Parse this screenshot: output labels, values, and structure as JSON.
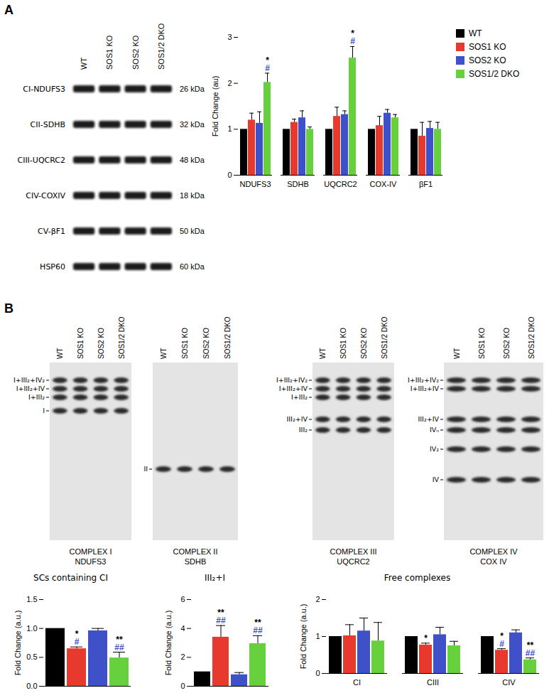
{
  "panel_labels": [
    "A",
    "B"
  ],
  "blot_a": {
    "lanes": [
      "WT",
      "SOS1 KO",
      "SOS2 KO",
      "SOS1/2 DKO"
    ],
    "rows": [
      {
        "label": "CI-NDUFS3",
        "mw": "26 kDa"
      },
      {
        "label": "CII-SDHB",
        "mw": "32 kDa"
      },
      {
        "label": "CIII-UQCRC2",
        "mw": "48 kDa"
      },
      {
        "label": "CIV-COXIV",
        "mw": "18 kDa"
      },
      {
        "label": "CV-βF1",
        "mw": "50 kDa"
      },
      {
        "label": "HSP60",
        "mw": "60 kDa"
      }
    ]
  },
  "blots_b": [
    {
      "lanes": [
        "WT",
        "SOS1 KO",
        "SOS2 KO",
        "SOS1/2 DKO"
      ],
      "bands": [
        "I+III₂+IV₂",
        "I+III₂+IV",
        "I+III₂",
        "I"
      ],
      "caption": [
        "COMPLEX I",
        "NDUFS3"
      ]
    },
    {
      "lanes": [
        "WT",
        "SOS1 KO",
        "SOS2 KO",
        "SOS1/2 DKO"
      ],
      "bands": [
        "II"
      ],
      "caption": [
        "COMPLEX II",
        "SDHB"
      ]
    },
    {
      "lanes": [
        "WT",
        "SOS1 KO",
        "SOS2 KO",
        "SOS1/2 DKO"
      ],
      "bands": [
        "I+III₂+IV₂",
        "I+III₂+IV",
        "I+III₂",
        "III₂+IV",
        "III₂"
      ],
      "caption": [
        "COMPLEX III",
        "UQCRC2"
      ]
    },
    {
      "lanes": [
        "WT",
        "SOS1 KO",
        "SOS2 KO",
        "SOS1/2 DKO"
      ],
      "bands": [
        "I+III₂+IV₂",
        "I+III₂+IV",
        "III₂+IV",
        "IVₙ",
        "IV₂",
        "IV"
      ],
      "caption": [
        "COMPLEX IV",
        "COX IV"
      ]
    }
  ],
  "chart_data": [
    {
      "type": "bar",
      "y_label": "Fold Change (au)",
      "categories": [
        "NDUFS3",
        "SDHB",
        "UQCRC2",
        "COX-IV",
        "βF1"
      ],
      "series": [
        {
          "name": "WT",
          "color": "#000000",
          "values": [
            1,
            1,
            1,
            1,
            1
          ],
          "errors": [
            0,
            0,
            0,
            0,
            0
          ]
        },
        {
          "name": "SOS1 KO",
          "color": "#e8392f",
          "values": [
            1.2,
            1.15,
            1.28,
            1.08,
            0.85
          ],
          "errors": [
            0.15,
            0.07,
            0.2,
            0.2,
            0.3
          ]
        },
        {
          "name": "SOS2 KO",
          "color": "#3f51c8",
          "values": [
            1.13,
            1.25,
            1.32,
            1.35,
            1.02
          ],
          "errors": [
            0.25,
            0.15,
            0.08,
            0.08,
            0.15
          ]
        },
        {
          "name": "SOS1/2 DKO",
          "color": "#66d13c",
          "values": [
            2.02,
            1.0,
            2.55,
            1.25,
            1.0
          ],
          "errors": [
            0.2,
            0.05,
            0.25,
            0.07,
            0.15
          ]
        }
      ],
      "ylim": [
        0,
        3
      ],
      "yticks": [
        0,
        1,
        2,
        3
      ],
      "legend": "right",
      "annotations": [
        {
          "category": "NDUFS3",
          "series": "SOS1/2 DKO",
          "marks": [
            {
              "text": "*",
              "color": "#000000"
            },
            {
              "text": "#",
              "color": "#3f51c8"
            }
          ]
        },
        {
          "category": "UQCRC2",
          "series": "SOS1/2 DKO",
          "marks": [
            {
              "text": "*",
              "color": "#000000"
            },
            {
              "text": "#",
              "color": "#3f51c8"
            }
          ]
        }
      ]
    },
    {
      "type": "bar",
      "title": "SCs containing CI",
      "y_label": "Fold Change (a.u.)",
      "categories": [
        null
      ],
      "series": [
        {
          "name": "WT",
          "color": "#000000",
          "values": [
            1
          ],
          "errors": [
            0
          ]
        },
        {
          "name": "SOS1 KO",
          "color": "#e8392f",
          "values": [
            0.65
          ],
          "errors": [
            0.03
          ]
        },
        {
          "name": "SOS2 KO",
          "color": "#3f51c8",
          "values": [
            0.96
          ],
          "errors": [
            0.04
          ]
        },
        {
          "name": "SOS1/2 DKO",
          "color": "#66d13c",
          "values": [
            0.49
          ],
          "errors": [
            0.1
          ]
        }
      ],
      "ylim": [
        0,
        1.5
      ],
      "yticks": [
        {
          "value": 0,
          "label": "0.0"
        },
        {
          "value": 0.5,
          "label": "0.5"
        },
        {
          "value": 1,
          "label": "1.0"
        },
        {
          "value": 1.5,
          "label": "1.5"
        }
      ],
      "tick_labels": "y",
      "annotations": [
        {
          "category": null,
          "series": "SOS1 KO",
          "marks": [
            {
              "text": "*",
              "color": "#000000"
            },
            {
              "text": "#",
              "color": "#3f51c8"
            }
          ]
        },
        {
          "category": null,
          "series": "SOS1/2 DKO",
          "marks": [
            {
              "text": "**",
              "color": "#000000"
            },
            {
              "text": "##",
              "color": "#3f51c8"
            }
          ]
        }
      ]
    },
    {
      "type": "bar",
      "title": "III₂+I",
      "y_label": "Fold Change (a.u.)",
      "categories": [
        null
      ],
      "series": [
        {
          "name": "WT",
          "color": "#000000",
          "values": [
            1
          ],
          "errors": [
            0
          ]
        },
        {
          "name": "SOS1 KO",
          "color": "#e8392f",
          "values": [
            3.4
          ],
          "errors": [
            0.8
          ]
        },
        {
          "name": "SOS2 KO",
          "color": "#3f51c8",
          "values": [
            0.8
          ],
          "errors": [
            0.15
          ]
        },
        {
          "name": "SOS1/2 DKO",
          "color": "#66d13c",
          "values": [
            2.95
          ],
          "errors": [
            0.55
          ]
        }
      ],
      "ylim": [
        0,
        6
      ],
      "yticks": [
        0,
        2,
        4,
        6
      ],
      "tick_labels": "y",
      "annotations": [
        {
          "category": null,
          "series": "SOS1 KO",
          "marks": [
            {
              "text": "**",
              "color": "#000000"
            },
            {
              "text": "##",
              "color": "#3f51c8"
            }
          ]
        },
        {
          "category": null,
          "series": "SOS1/2 DKO",
          "marks": [
            {
              "text": "**",
              "color": "#000000"
            },
            {
              "text": "##",
              "color": "#3f51c8"
            }
          ]
        }
      ]
    },
    {
      "type": "bar",
      "title": "Free complexes",
      "y_label": "Fold Change (a.u.)",
      "categories": [
        "CI",
        "CIII",
        "CIV"
      ],
      "series": [
        {
          "name": "WT",
          "color": "#000000",
          "values": [
            1,
            1,
            1
          ],
          "errors": [
            0,
            0,
            0
          ]
        },
        {
          "name": "SOS1 KO",
          "color": "#e8392f",
          "values": [
            1.02,
            0.77,
            0.63
          ],
          "errors": [
            0.3,
            0.05,
            0.04
          ]
        },
        {
          "name": "SOS2 KO",
          "color": "#3f51c8",
          "values": [
            1.15,
            1.05,
            1.1
          ],
          "errors": [
            0.35,
            0.2,
            0.08
          ]
        },
        {
          "name": "SOS1/2 DKO",
          "color": "#66d13c",
          "values": [
            0.88,
            0.75,
            0.37
          ],
          "errors": [
            0.5,
            0.12,
            0.05
          ]
        }
      ],
      "ylim": [
        0,
        2
      ],
      "yticks": [
        0,
        1,
        2
      ],
      "annotations": [
        {
          "category": "CIII",
          "series": "SOS1 KO",
          "marks": [
            {
              "text": "*",
              "color": "#000000"
            }
          ]
        },
        {
          "category": "CIV",
          "series": "SOS1 KO",
          "marks": [
            {
              "text": "*",
              "color": "#000000"
            },
            {
              "text": "#",
              "color": "#3f51c8"
            }
          ]
        },
        {
          "category": "CIV",
          "series": "SOS1/2 DKO",
          "marks": [
            {
              "text": "**",
              "color": "#000000"
            },
            {
              "text": "##",
              "color": "#3f51c8"
            }
          ]
        }
      ]
    }
  ]
}
